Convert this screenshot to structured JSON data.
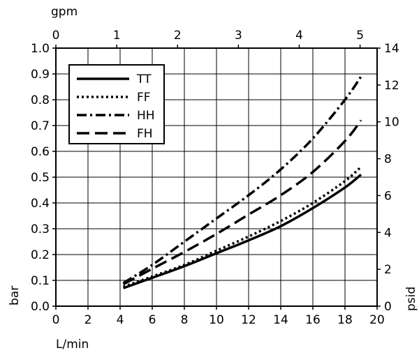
{
  "chart_data": {
    "type": "line",
    "xlabel": "L/min",
    "ylabel": "bar",
    "x2label": "gpm",
    "y2label": "psid",
    "xlim": [
      0,
      20
    ],
    "ylim": [
      0,
      1.0
    ],
    "x2lim": [
      0,
      5.28
    ],
    "y2lim": [
      0,
      14
    ],
    "x_ticks": [
      "0",
      "2",
      "4",
      "6",
      "8",
      "10",
      "12",
      "14",
      "16",
      "18",
      "20"
    ],
    "y_ticks": [
      "0.0",
      "0.1",
      "0.2",
      "0.3",
      "0.4",
      "0.5",
      "0.6",
      "0.7",
      "0.8",
      "0.9",
      "1.0"
    ],
    "x2_ticks": [
      "0",
      "1",
      "2",
      "3",
      "4",
      "5"
    ],
    "y2_ticks": [
      "0",
      "2",
      "4",
      "6",
      "8",
      "10",
      "12",
      "14"
    ],
    "grid": true,
    "legend_position": "top-left",
    "series": [
      {
        "name": "TT",
        "style": "solid",
        "x": [
          4.2,
          6,
          8,
          10,
          12,
          14,
          16,
          18,
          19
        ],
        "y": [
          0.07,
          0.11,
          0.155,
          0.205,
          0.255,
          0.31,
          0.38,
          0.46,
          0.51
        ]
      },
      {
        "name": "FF",
        "style": "dotted",
        "x": [
          4.2,
          6,
          8,
          10,
          12,
          14,
          16,
          18,
          19
        ],
        "y": [
          0.075,
          0.115,
          0.16,
          0.215,
          0.27,
          0.33,
          0.4,
          0.485,
          0.54
        ]
      },
      {
        "name": "HH",
        "style": "dash-dot",
        "x": [
          4.2,
          6,
          8,
          10,
          12,
          14,
          16,
          18,
          19
        ],
        "y": [
          0.09,
          0.16,
          0.25,
          0.34,
          0.43,
          0.53,
          0.65,
          0.8,
          0.89
        ]
      },
      {
        "name": "FH",
        "style": "dashed",
        "x": [
          4.2,
          6,
          8,
          10,
          12,
          14,
          16,
          18,
          19
        ],
        "y": [
          0.085,
          0.145,
          0.21,
          0.28,
          0.355,
          0.43,
          0.52,
          0.64,
          0.72
        ]
      }
    ]
  }
}
